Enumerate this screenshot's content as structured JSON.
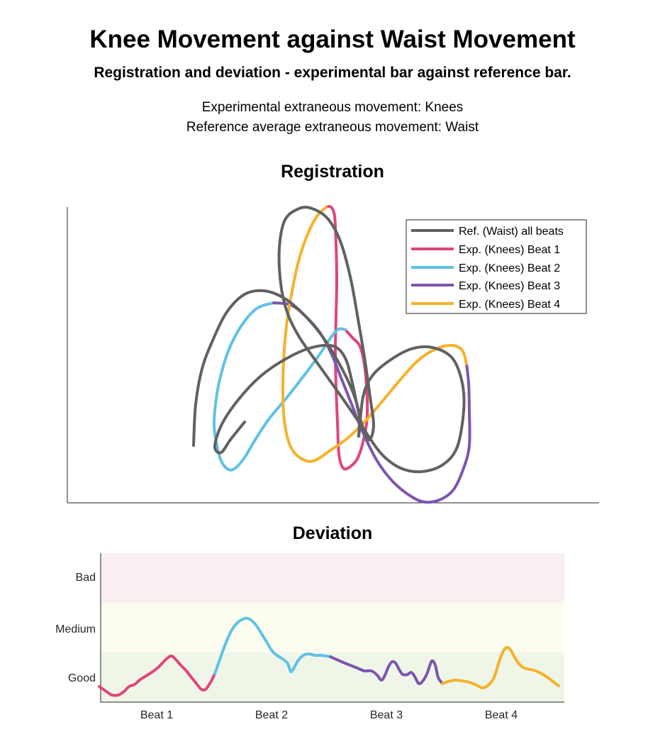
{
  "header": {
    "title": "Knee Movement against Waist Movement",
    "subtitle": "Registration and deviation - experimental bar against reference bar.",
    "info_line_1": "Experimental extraneous movement: Knees",
    "info_line_2": "Reference average extraneous movement: Waist"
  },
  "colors": {
    "reference": "#616161",
    "beat1": "#e0457b",
    "beat2": "#5ec2e6",
    "beat3": "#7d55b0",
    "beat4": "#f5b22a",
    "bad_zone": "#f9eff0",
    "medium_zone": "#fdfcf0",
    "good_zone": "#eff6e7"
  },
  "chart_data": [
    {
      "type": "line",
      "title": "Registration",
      "xlabel": "",
      "ylabel": "",
      "axes_ticks": "none",
      "grid": false,
      "legend_position": "top-right",
      "series": [
        {
          "name": "Ref. (Waist) all beats",
          "color": "#616161",
          "points": [
            [
              273,
              628
            ],
            [
              276,
              570
            ],
            [
              285,
              520
            ],
            [
              300,
              480
            ],
            [
              320,
              440
            ],
            [
              345,
              415
            ],
            [
              372,
              410
            ],
            [
              400,
              420
            ],
            [
              430,
              445
            ],
            [
              460,
              482
            ],
            [
              490,
              535
            ],
            [
              506,
              580
            ],
            [
              506,
              615
            ],
            [
              512,
              560
            ],
            [
              525,
              530
            ],
            [
              550,
              508
            ],
            [
              580,
              492
            ],
            [
              610,
              490
            ],
            [
              638,
              505
            ],
            [
              652,
              540
            ],
            [
              654,
              580
            ],
            [
              645,
              630
            ],
            [
              625,
              655
            ],
            [
              595,
              665
            ],
            [
              565,
              660
            ],
            [
              538,
              640
            ],
            [
              513,
              605
            ],
            [
              482,
              560
            ],
            [
              452,
              518
            ],
            [
              422,
              475
            ],
            [
              405,
              440
            ],
            [
              396,
              400
            ],
            [
              394,
              350
            ],
            [
              402,
              310
            ],
            [
              422,
              294
            ],
            [
              440,
              294
            ],
            [
              462,
              308
            ],
            [
              480,
              340
            ],
            [
              494,
              390
            ],
            [
              505,
              450
            ],
            [
              515,
              510
            ],
            [
              522,
              560
            ],
            [
              527,
              600
            ],
            [
              520,
              620
            ],
            [
              508,
              590
            ],
            [
              497,
              540
            ],
            [
              487,
              505
            ],
            [
              470,
              488
            ],
            [
              440,
              490
            ],
            [
              405,
              505
            ],
            [
              368,
              530
            ],
            [
              335,
              565
            ],
            [
              312,
              600
            ],
            [
              303,
              630
            ],
            [
              312,
              638
            ],
            [
              325,
              620
            ],
            [
              345,
              595
            ]
          ]
        },
        {
          "name": "Exp. (Knees) Beat 1",
          "color": "#e0457b",
          "points": [
            [
              460,
              292
            ],
            [
              467,
              292
            ],
            [
              472,
              305
            ],
            [
              474,
              345
            ],
            [
              475,
              395
            ],
            [
              474,
              445
            ],
            [
              473,
              495
            ],
            [
              474,
              545
            ],
            [
              476,
              595
            ],
            [
              478,
              640
            ],
            [
              484,
              660
            ],
            [
              494,
              658
            ],
            [
              505,
              645
            ],
            [
              514,
              615
            ],
            [
              518,
              585
            ],
            [
              517,
              545
            ],
            [
              513,
              508
            ],
            [
              507,
              487
            ],
            [
              497,
              476
            ],
            [
              487,
              465
            ]
          ]
        },
        {
          "name": "Exp. (Knees) Beat 2",
          "color": "#5ec2e6",
          "points": [
            [
              487,
              465
            ],
            [
              478,
              464
            ],
            [
              468,
              474
            ],
            [
              452,
              498
            ],
            [
              430,
              528
            ],
            [
              405,
              560
            ],
            [
              380,
              590
            ],
            [
              360,
              620
            ],
            [
              345,
              645
            ],
            [
              332,
              660
            ],
            [
              322,
              662
            ],
            [
              312,
              650
            ],
            [
              306,
              628
            ],
            [
              302,
              600
            ],
            [
              304,
              570
            ],
            [
              310,
              535
            ],
            [
              322,
              495
            ],
            [
              340,
              460
            ],
            [
              362,
              435
            ],
            [
              386,
              427
            ]
          ]
        },
        {
          "name": "Exp. (Knees) Beat 3",
          "color": "#7d55b0",
          "points": [
            [
              386,
              427
            ],
            [
              410,
              430
            ],
            [
              430,
              445
            ],
            [
              452,
              470
            ],
            [
              468,
              500
            ],
            [
              482,
              535
            ],
            [
              496,
              570
            ],
            [
              512,
              610
            ],
            [
              532,
              650
            ],
            [
              555,
              680
            ],
            [
              580,
              700
            ],
            [
              600,
              708
            ],
            [
              622,
              704
            ],
            [
              640,
              690
            ],
            [
              654,
              660
            ],
            [
              662,
              628
            ],
            [
              662,
              580
            ],
            [
              661,
              540
            ],
            [
              658,
              513
            ]
          ]
        },
        {
          "name": "Exp. (Knees) Beat 4",
          "color": "#f5b22a",
          "points": [
            [
              658,
              513
            ],
            [
              652,
              494
            ],
            [
              637,
              487
            ],
            [
              615,
              492
            ],
            [
              590,
              508
            ],
            [
              565,
              535
            ],
            [
              540,
              565
            ],
            [
              514,
              595
            ],
            [
              490,
              618
            ],
            [
              466,
              635
            ],
            [
              442,
              650
            ],
            [
              424,
              646
            ],
            [
              410,
              630
            ],
            [
              402,
              600
            ],
            [
              399,
              560
            ],
            [
              400,
              510
            ],
            [
              404,
              460
            ],
            [
              412,
              410
            ],
            [
              422,
              365
            ],
            [
              434,
              330
            ],
            [
              447,
              305
            ],
            [
              460,
              292
            ]
          ]
        }
      ]
    },
    {
      "type": "line",
      "title": "Deviation",
      "categories": [
        "Beat 1",
        "Beat 2",
        "Beat 3",
        "Beat 4"
      ],
      "y_bands": [
        "Good",
        "Medium",
        "Bad"
      ],
      "xlabel": "",
      "ylabel": "",
      "grid": false,
      "series": [
        {
          "name": "Beat 1",
          "color": "#e0457b",
          "points": [
            [
              140,
              968
            ],
            [
              150,
              975
            ],
            [
              158,
              980
            ],
            [
              167,
              980
            ],
            [
              175,
              975
            ],
            [
              182,
              968
            ],
            [
              190,
              965
            ],
            [
              198,
              958
            ],
            [
              206,
              953
            ],
            [
              214,
              948
            ],
            [
              222,
              942
            ],
            [
              229,
              935
            ],
            [
              236,
              928
            ],
            [
              242,
              925
            ],
            [
              248,
              930
            ],
            [
              255,
              938
            ],
            [
              262,
              945
            ],
            [
              270,
              955
            ],
            [
              278,
              965
            ],
            [
              284,
              972
            ],
            [
              290,
              972
            ],
            [
              297,
              962
            ],
            [
              303,
              950
            ]
          ]
        },
        {
          "name": "Beat 2",
          "color": "#5ec2e6",
          "points": [
            [
              303,
              950
            ],
            [
              310,
              930
            ],
            [
              318,
              908
            ],
            [
              326,
              890
            ],
            [
              335,
              878
            ],
            [
              345,
              872
            ],
            [
              352,
              873
            ],
            [
              360,
              880
            ],
            [
              368,
              892
            ],
            [
              376,
              905
            ],
            [
              384,
              918
            ],
            [
              392,
              925
            ],
            [
              400,
              930
            ],
            [
              406,
              936
            ],
            [
              410,
              947
            ],
            [
              414,
              943
            ],
            [
              420,
              932
            ],
            [
              428,
              924
            ],
            [
              436,
              922
            ],
            [
              444,
              924
            ],
            [
              452,
              924
            ],
            [
              460,
              925
            ],
            [
              466,
              926
            ]
          ]
        },
        {
          "name": "Beat 3",
          "color": "#7d55b0",
          "points": [
            [
              466,
              926
            ],
            [
              475,
              930
            ],
            [
              484,
              934
            ],
            [
              494,
              938
            ],
            [
              504,
              942
            ],
            [
              514,
              946
            ],
            [
              524,
              946
            ],
            [
              532,
              952
            ],
            [
              538,
              959
            ],
            [
              543,
              952
            ],
            [
              548,
              940
            ],
            [
              553,
              933
            ],
            [
              558,
              935
            ],
            [
              563,
              944
            ],
            [
              568,
              951
            ],
            [
              575,
              951
            ],
            [
              580,
              948
            ],
            [
              585,
              954
            ],
            [
              591,
              964
            ],
            [
              598,
              958
            ],
            [
              603,
              948
            ],
            [
              609,
              932
            ],
            [
              614,
              938
            ],
            [
              618,
              955
            ],
            [
              624,
              964
            ]
          ]
        },
        {
          "name": "Beat 4",
          "color": "#f5b22a",
          "points": [
            [
              624,
              964
            ],
            [
              632,
              961
            ],
            [
              642,
              959
            ],
            [
              652,
              960
            ],
            [
              662,
              962
            ],
            [
              672,
              966
            ],
            [
              681,
              970
            ],
            [
              690,
              965
            ],
            [
              697,
              955
            ],
            [
              704,
              933
            ],
            [
              710,
              918
            ],
            [
              715,
              913
            ],
            [
              720,
              916
            ],
            [
              726,
              927
            ],
            [
              733,
              937
            ],
            [
              740,
              942
            ],
            [
              748,
              944
            ],
            [
              756,
              946
            ],
            [
              764,
              950
            ],
            [
              772,
              955
            ],
            [
              780,
              961
            ],
            [
              788,
              967
            ]
          ]
        }
      ]
    }
  ]
}
